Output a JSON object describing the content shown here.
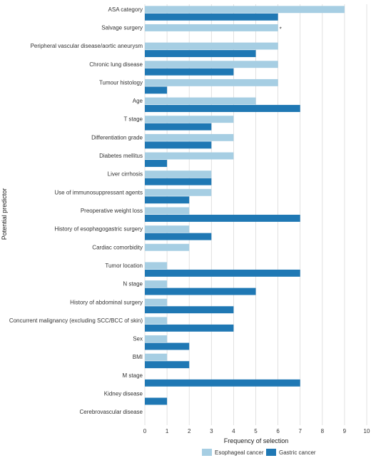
{
  "chart_data": {
    "type": "bar",
    "orientation": "horizontal",
    "xlabel": "Frequency of selection",
    "ylabel": "Potential predictor",
    "xlim": [
      0,
      10
    ],
    "xticks": [
      "0",
      "1",
      "2",
      "3",
      "4",
      "5",
      "6",
      "7",
      "8",
      "9",
      "10"
    ],
    "grid": "vertical",
    "legend_position": "bottom",
    "categories": [
      "ASA category",
      "Salvage surgery",
      "Peripheral vascular disease/aortic aneurysm",
      "Chronic lung disease",
      "Tumour histology",
      "Age",
      "T stage",
      "Differentiation grade",
      "Diabetes mellitus",
      "Liver cirrhosis",
      "Use of immunosuppressant agents",
      "Preoperative weight loss",
      "History of esophagogastric surgery",
      "Cardiac comorbidity",
      "Tumor location",
      "N stage",
      "History of abdominal surgery",
      "Concurrent malignancy (excluding SCC/BCC of skin)",
      "Sex",
      "BMI",
      "M stage",
      "Kidney disease",
      "Cerebrovascular disease"
    ],
    "series": [
      {
        "name": "Esophageal cancer",
        "color": "#a6cee3",
        "values": [
          9,
          6,
          6,
          6,
          6,
          5,
          4,
          4,
          4,
          3,
          3,
          2,
          2,
          2,
          1,
          1,
          1,
          1,
          1,
          1,
          0,
          0,
          0
        ]
      },
      {
        "name": "Gastric cancer",
        "color": "#1f78b4",
        "values": [
          6,
          0,
          5,
          4,
          1,
          7,
          3,
          3,
          1,
          3,
          2,
          7,
          3,
          0,
          7,
          5,
          4,
          4,
          2,
          2,
          7,
          1,
          0
        ]
      }
    ],
    "annotations": [
      {
        "category": "Salvage surgery",
        "text": "*"
      }
    ]
  }
}
